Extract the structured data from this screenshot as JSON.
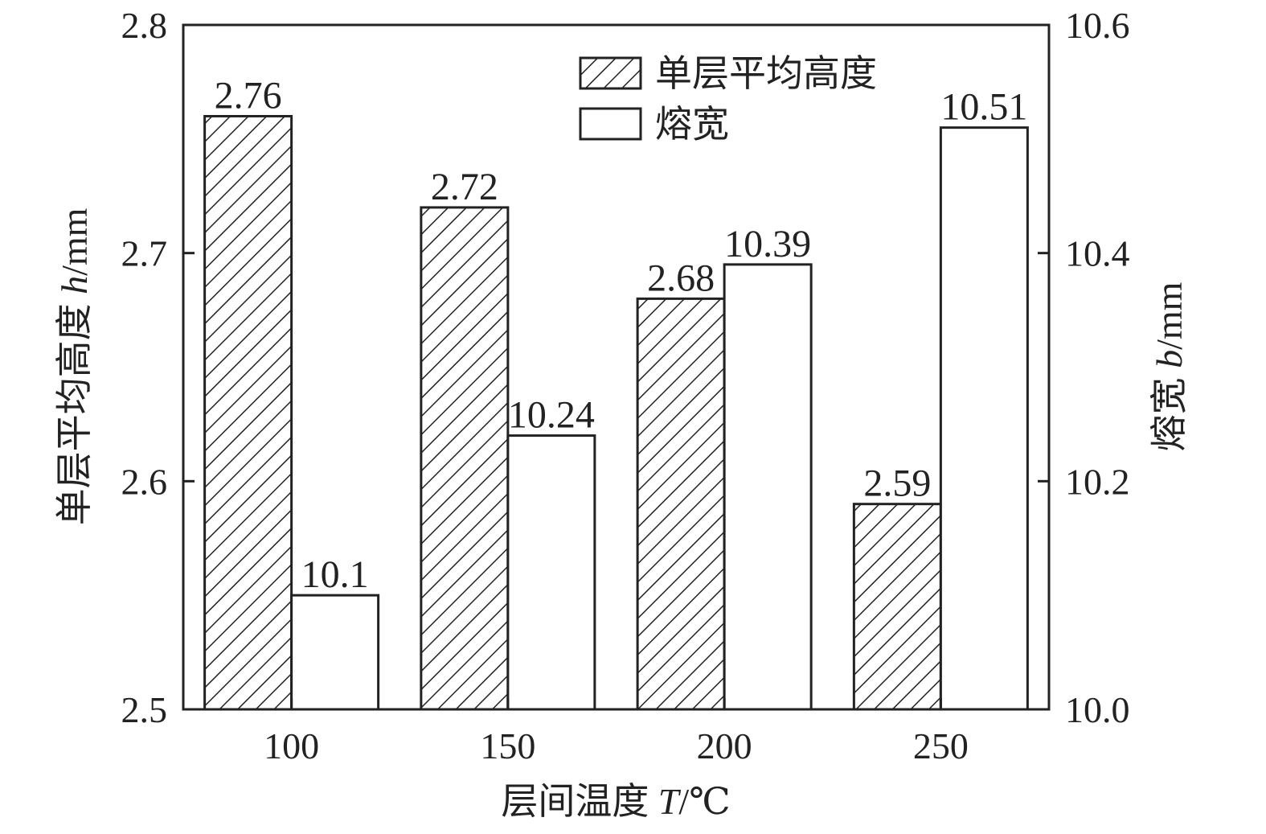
{
  "chart_data": {
    "type": "bar",
    "categories": [
      "100",
      "150",
      "200",
      "250"
    ],
    "series": [
      {
        "name": "单层平均高度",
        "axis": "left",
        "pattern": "hatched",
        "values": [
          2.76,
          2.72,
          2.68,
          2.59
        ],
        "labels": [
          "2.76",
          "2.72",
          "2.68",
          "2.59"
        ]
      },
      {
        "name": "熔宽",
        "axis": "right",
        "pattern": "open",
        "values": [
          10.1,
          10.24,
          10.39,
          10.51
        ],
        "labels": [
          "10.1",
          "10.24",
          "10.39",
          "10.51"
        ]
      }
    ],
    "xlabel": {
      "text": "层间温度 ",
      "var": "T",
      "unit": "/℃"
    },
    "ylabel_left": {
      "text": "单层平均高度 ",
      "var": "h",
      "unit": "/mm"
    },
    "ylabel_right": {
      "text": "熔宽 ",
      "var": "b",
      "unit": "/mm"
    },
    "ylim_left": [
      2.5,
      2.8
    ],
    "ylim_right": [
      10.0,
      10.6
    ],
    "yticks_left": [
      "2.5",
      "2.6",
      "2.7",
      "2.8"
    ],
    "yticks_right": [
      "10.0",
      "10.2",
      "10.4",
      "10.6"
    ],
    "grid": false,
    "legend_position": "top-right"
  },
  "colors": {
    "axis": "#222222",
    "bar_fill": "#ffffff",
    "hatch": "#222222"
  }
}
